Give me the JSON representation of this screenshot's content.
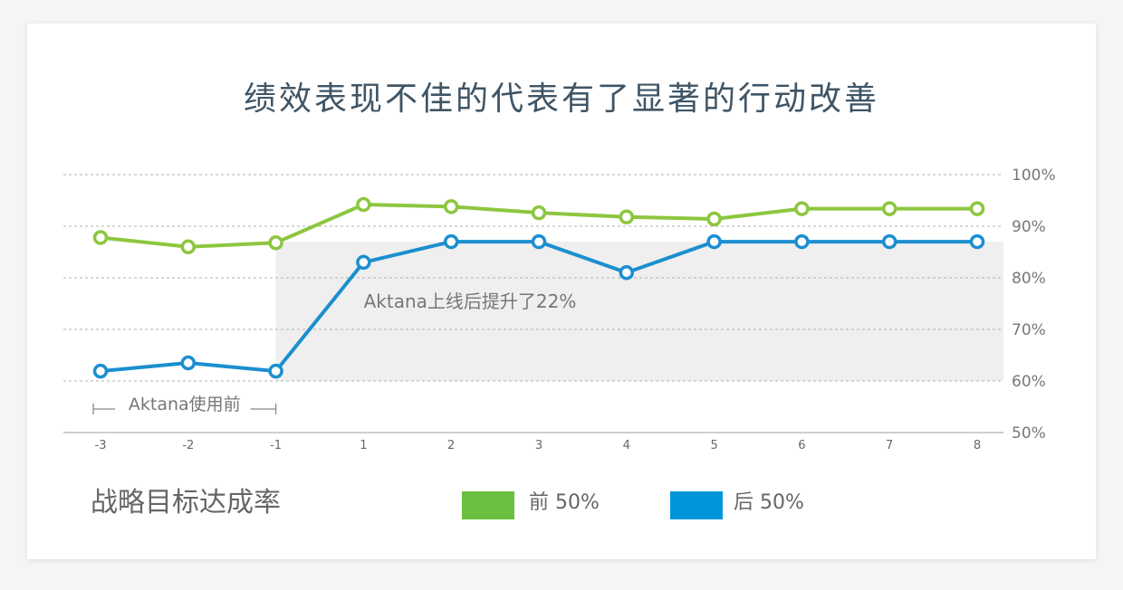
{
  "chart_data": {
    "type": "line",
    "title": "绩效表现不佳的代表有了显著的行动改善",
    "subtitle": "战略目标达成率",
    "categories": [
      "-3",
      "-2",
      "-1",
      "1",
      "2",
      "3",
      "4",
      "5",
      "6",
      "7",
      "8"
    ],
    "y_tick_labels": [
      "100%",
      "90%",
      "80%",
      "70%",
      "60%",
      "50%"
    ],
    "ylim": [
      50,
      100
    ],
    "grid": true,
    "series": [
      {
        "name": "前 50%",
        "color": "#8dc63f",
        "values": [
          87.8,
          86,
          86.8,
          94.2,
          93.8,
          92.6,
          91.8,
          91.4,
          93.4,
          93.4,
          93.4
        ]
      },
      {
        "name": "后 50%",
        "color": "#1b8fd0",
        "values": [
          61.9,
          63.5,
          61.9,
          83,
          87,
          87,
          81,
          87,
          87,
          87,
          87
        ]
      }
    ],
    "legend_swatches": {
      "前 50%": "#6abf40",
      "后 50%": "#0095da"
    },
    "highlight": {
      "x_from": "-1",
      "x_to": "8",
      "y_from": 60,
      "y_to": 87,
      "label": "Aktana上线后提升了22%"
    },
    "bracket": {
      "x_from": "-3",
      "x_to": "-1",
      "label": "Aktana使用前"
    },
    "legend_position": "bottom"
  }
}
